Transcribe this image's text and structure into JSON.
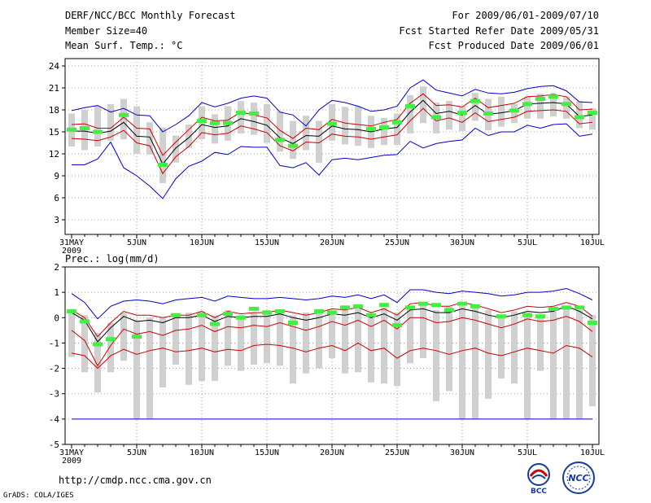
{
  "header": {
    "title": "DERF/NCC/BCC Monthly Forecast",
    "member_size": "Member Size=40",
    "top_variable": "Mean Surf. Temp.: °C",
    "period": "For 2009/06/01-2009/07/10",
    "started": "Fcst Started Refer Date 2009/05/31",
    "produced": "Fcst Produced Date 2009/06/01"
  },
  "footer": {
    "url": "http://cmdp.ncc.cma.gov.cn",
    "grads": "GrADS: COLA/IGES",
    "bcc_logo_text": "BCC",
    "ncc_logo_text": "NCC"
  },
  "colors": {
    "max_min": "#0000cc",
    "spread": "#cc0000",
    "mean": "#000000",
    "box": "#d0d0d0",
    "obs": "#44ee44"
  },
  "chart_data": [
    {
      "type": "line",
      "title": "Mean Surf. Temp.: °C",
      "ylim": [
        1,
        25
      ],
      "yticks": [
        3,
        6,
        9,
        12,
        15,
        18,
        21,
        24
      ],
      "x_tick_labels": [
        "31MAY",
        "5JUN",
        "10JUN",
        "15JUN",
        "20JUN",
        "25JUN",
        "30JUN",
        "5JUL",
        "10JUL"
      ],
      "x_tick_index": [
        0,
        5,
        10,
        15,
        20,
        25,
        30,
        35,
        40
      ],
      "x_year_label": "2009",
      "x_count": 41,
      "grid": true,
      "series": [
        {
          "name": "max",
          "values": [
            17.9,
            18.3,
            18.6,
            17.7,
            18.2,
            17.3,
            17.2,
            15.0,
            16.0,
            17.2,
            19.0,
            18.4,
            18.9,
            19.6,
            19.9,
            19.6,
            17.7,
            17.3,
            15.8,
            18.0,
            19.3,
            19.0,
            18.5,
            17.8,
            18.0,
            18.5,
            21.0,
            22.1,
            20.7,
            20.3,
            19.9,
            20.8,
            20.3,
            20.2,
            20.4,
            20.9,
            21.2,
            21.3,
            20.6,
            19.1,
            19.0
          ]
        },
        {
          "name": "upper",
          "values": [
            16.0,
            16.1,
            15.5,
            15.5,
            17.0,
            15.5,
            15.4,
            11.8,
            13.6,
            15.3,
            17.0,
            16.5,
            16.6,
            17.7,
            17.3,
            16.9,
            15.2,
            14.1,
            15.5,
            15.3,
            16.7,
            16.2,
            16.0,
            15.8,
            16.3,
            16.7,
            18.9,
            20.2,
            18.6,
            18.7,
            18.4,
            19.6,
            18.3,
            18.6,
            18.9,
            19.8,
            19.9,
            20.1,
            19.8,
            18.0,
            18.1
          ]
        },
        {
          "name": "mean",
          "values": [
            15.1,
            15.1,
            14.8,
            15.1,
            16.3,
            14.4,
            14.3,
            10.6,
            12.8,
            14.2,
            16.0,
            15.6,
            15.8,
            16.8,
            16.4,
            15.9,
            14.2,
            13.4,
            14.5,
            14.4,
            15.8,
            15.4,
            15.3,
            15.0,
            15.4,
            15.6,
            17.7,
            19.3,
            17.5,
            17.8,
            17.3,
            18.6,
            17.4,
            17.6,
            17.9,
            18.8,
            18.9,
            19.0,
            18.8,
            17.1,
            17.3
          ]
        },
        {
          "name": "lower",
          "values": [
            14.1,
            14.0,
            13.8,
            14.3,
            15.2,
            13.5,
            13.1,
            9.3,
            11.6,
            13.0,
            14.9,
            14.6,
            14.8,
            15.8,
            15.4,
            14.9,
            13.1,
            12.4,
            13.6,
            13.5,
            14.7,
            14.4,
            14.3,
            14.0,
            14.3,
            14.6,
            16.5,
            18.2,
            16.5,
            16.9,
            16.3,
            17.6,
            16.4,
            16.7,
            17.0,
            17.8,
            17.9,
            18.0,
            17.8,
            16.1,
            16.3
          ]
        },
        {
          "name": "min",
          "values": [
            10.5,
            10.5,
            11.3,
            13.6,
            10.1,
            9.0,
            7.6,
            5.9,
            8.6,
            10.3,
            11.0,
            12.2,
            11.9,
            13.0,
            12.9,
            12.9,
            10.4,
            10.1,
            10.8,
            9.1,
            11.2,
            11.4,
            11.2,
            11.5,
            11.8,
            11.9,
            13.7,
            12.8,
            13.4,
            13.7,
            13.9,
            15.5,
            14.5,
            15.0,
            15.0,
            15.9,
            15.5,
            16.0,
            16.1,
            14.4,
            14.7
          ]
        }
      ],
      "boxes": {
        "low": [
          13.0,
          12.5,
          13.0,
          13.8,
          14.0,
          12.0,
          11.9,
          8.0,
          10.8,
          12.8,
          14.0,
          13.4,
          13.8,
          14.8,
          14.6,
          13.5,
          12.3,
          11.3,
          12.5,
          10.8,
          13.8,
          13.3,
          13.1,
          12.8,
          13.2,
          13.2,
          14.8,
          16.2,
          14.8,
          15.3,
          15.1,
          16.5,
          15.2,
          15.7,
          16.2,
          16.8,
          16.8,
          17.1,
          16.8,
          15.5,
          15.3
        ],
        "high": [
          17.5,
          18.0,
          18.5,
          18.8,
          19.5,
          18.5,
          16.3,
          15.6,
          14.5,
          16.0,
          18.5,
          17.4,
          18.5,
          19.2,
          19.0,
          18.8,
          17.8,
          16.5,
          17.2,
          16.5,
          18.8,
          18.4,
          18.5,
          17.2,
          16.9,
          17.5,
          20.0,
          21.2,
          19.0,
          19.2,
          18.5,
          20.3,
          19.5,
          19.8,
          18.8,
          19.8,
          20.2,
          20.3,
          19.8,
          19.2,
          18.2
        ]
      },
      "observed": [
        15.3,
        15.5,
        15.0,
        null,
        17.3,
        null,
        null,
        10.5,
        null,
        null,
        16.5,
        16.2,
        16.2,
        17.6,
        17.5,
        null,
        13.9,
        13.1,
        null,
        null,
        16.1,
        null,
        null,
        15.4,
        15.6,
        16.3,
        18.5,
        null,
        17.0,
        null,
        17.6,
        19.2,
        17.5,
        null,
        17.9,
        18.8,
        19.5,
        19.8,
        18.8,
        17.0,
        17.6
      ]
    },
    {
      "type": "line",
      "title": "Prec.: log(mm/d)",
      "ylim": [
        -5,
        2
      ],
      "yticks": [
        -5,
        -4,
        -3,
        -2,
        -1,
        0,
        1,
        2
      ],
      "x_tick_labels": [
        "31MAY",
        "5JUN",
        "10JUN",
        "15JUN",
        "20JUN",
        "25JUN",
        "30JUN",
        "5JUL",
        "10JUL"
      ],
      "x_tick_index": [
        0,
        5,
        10,
        15,
        20,
        25,
        30,
        35,
        40
      ],
      "x_year_label": "2009",
      "x_count": 41,
      "grid": true,
      "series": [
        {
          "name": "max",
          "values": [
            0.95,
            0.6,
            -0.05,
            0.45,
            0.65,
            0.7,
            0.65,
            0.55,
            0.7,
            0.75,
            0.8,
            0.65,
            0.85,
            0.8,
            0.75,
            0.75,
            0.8,
            0.75,
            0.7,
            0.75,
            0.85,
            0.8,
            0.9,
            0.75,
            0.9,
            0.6,
            1.1,
            1.1,
            1.0,
            0.95,
            1.05,
            1.0,
            0.95,
            0.85,
            0.9,
            1.0,
            1.0,
            1.05,
            1.15,
            0.95,
            0.7
          ]
        },
        {
          "name": "upper",
          "values": [
            0.3,
            0.0,
            -0.75,
            -0.2,
            0.25,
            0.1,
            0.1,
            0.0,
            0.1,
            0.1,
            0.25,
            0.0,
            0.25,
            0.15,
            0.2,
            0.2,
            0.3,
            0.2,
            0.1,
            0.2,
            0.35,
            0.3,
            0.4,
            0.2,
            0.35,
            0.1,
            0.55,
            0.6,
            0.45,
            0.45,
            0.6,
            0.5,
            0.35,
            0.2,
            0.3,
            0.45,
            0.4,
            0.45,
            0.6,
            0.45,
            0.05
          ]
        },
        {
          "name": "mean",
          "values": [
            0.2,
            -0.1,
            -0.95,
            -0.4,
            0.05,
            -0.15,
            -0.1,
            -0.2,
            0.0,
            0.0,
            0.1,
            -0.15,
            0.05,
            0.0,
            0.05,
            0.05,
            0.15,
            0.0,
            -0.1,
            0.0,
            0.15,
            0.1,
            0.2,
            0.0,
            0.15,
            -0.1,
            0.3,
            0.35,
            0.2,
            0.2,
            0.35,
            0.25,
            0.1,
            0.0,
            0.1,
            0.25,
            0.2,
            0.25,
            0.45,
            0.25,
            -0.05
          ]
        },
        {
          "name": "lower",
          "values": [
            -0.5,
            -0.9,
            -1.9,
            -1.1,
            -0.45,
            -0.65,
            -0.55,
            -0.7,
            -0.5,
            -0.45,
            -0.3,
            -0.55,
            -0.35,
            -0.4,
            -0.3,
            -0.35,
            -0.2,
            -0.35,
            -0.5,
            -0.35,
            -0.15,
            -0.3,
            -0.1,
            -0.35,
            -0.1,
            -0.45,
            0.0,
            0.0,
            -0.2,
            -0.15,
            0.0,
            -0.1,
            -0.25,
            -0.4,
            -0.25,
            -0.05,
            -0.15,
            -0.1,
            0.05,
            -0.15,
            -0.55
          ]
        },
        {
          "name": "min",
          "values": [
            -4.0,
            -4.0,
            -4.0,
            -4.0,
            -4.0,
            -4.0,
            -4.0,
            -4.0,
            -4.0,
            -4.0,
            -4.0,
            -4.0,
            -4.0,
            -4.0,
            -4.0,
            -4.0,
            -4.0,
            -4.0,
            -4.0,
            -4.0,
            -4.0,
            -4.0,
            -4.0,
            -4.0,
            -4.0,
            -4.0,
            -4.0,
            -4.0,
            -4.0,
            -4.0,
            -4.0,
            -4.0,
            -4.0,
            -4.0,
            -4.0,
            -4.0,
            -4.0,
            -4.0,
            -4.0,
            -4.0,
            -4.0
          ]
        },
        {
          "name": "lower_bound",
          "values": [
            -1.4,
            -1.5,
            -2.0,
            -1.5,
            -1.25,
            -1.45,
            -1.3,
            -1.2,
            -1.35,
            -1.3,
            -1.2,
            -1.35,
            -1.25,
            -1.3,
            -1.1,
            -1.05,
            -1.1,
            -1.2,
            -1.35,
            -1.2,
            -1.1,
            -1.3,
            -1.0,
            -1.3,
            -1.2,
            -1.6,
            -1.3,
            -1.2,
            -1.3,
            -1.45,
            -1.3,
            -1.2,
            -1.4,
            -1.5,
            -1.35,
            -1.2,
            -1.3,
            -1.4,
            -1.1,
            -1.2,
            -1.55
          ]
        }
      ],
      "boxes": {
        "low": [
          -1.55,
          -2.15,
          -2.95,
          -2.15,
          -1.7,
          -4.0,
          -4.0,
          -2.75,
          -1.85,
          -2.65,
          -2.5,
          -2.5,
          -1.9,
          -2.1,
          -1.85,
          -1.8,
          -1.9,
          -2.6,
          -2.2,
          -2.0,
          -1.6,
          -2.2,
          -2.15,
          -2.55,
          -2.6,
          -2.7,
          -1.8,
          -1.6,
          -3.3,
          -2.9,
          -4.0,
          -4.0,
          -3.2,
          -2.4,
          -2.6,
          -4.0,
          -2.1,
          -4.0,
          -4.0,
          -4.0,
          -3.5
        ],
        "high": [
          0.3,
          0.1,
          -0.6,
          -0.2,
          0.2,
          -0.1,
          0.0,
          0.0,
          0.1,
          0.2,
          0.25,
          0.1,
          0.3,
          0.1,
          0.2,
          0.3,
          0.2,
          0.1,
          0.2,
          0.25,
          0.3,
          0.35,
          0.45,
          0.1,
          0.4,
          0.2,
          0.4,
          0.5,
          0.3,
          0.45,
          0.45,
          0.4,
          0.3,
          0.1,
          0.25,
          0.2,
          0.1,
          0.3,
          0.4,
          0.3,
          0.1
        ]
      },
      "observed": [
        0.25,
        -0.15,
        -1.05,
        -0.85,
        null,
        -0.75,
        null,
        null,
        0.1,
        null,
        0.1,
        -0.25,
        0.15,
        0.0,
        0.35,
        0.2,
        0.25,
        -0.2,
        null,
        0.25,
        0.2,
        0.4,
        0.45,
        0.1,
        0.5,
        -0.3,
        0.4,
        0.55,
        0.5,
        0.3,
        0.55,
        0.45,
        null,
        0.05,
        null,
        0.1,
        0.05,
        0.35,
        0.4,
        0.4,
        -0.2
      ]
    }
  ]
}
